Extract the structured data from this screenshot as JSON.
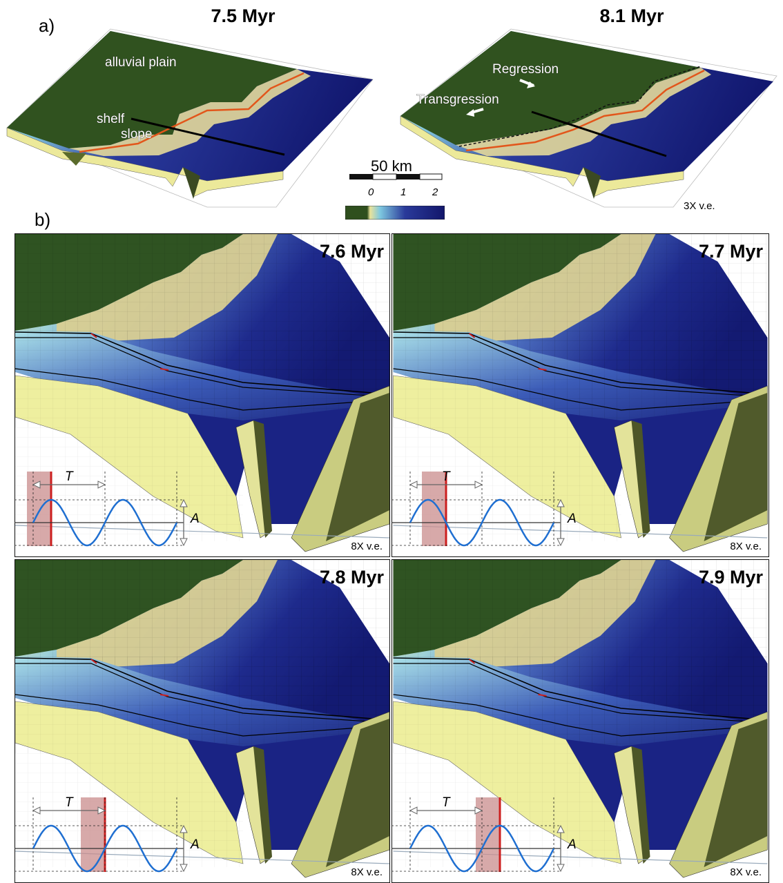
{
  "section_a_label": "a)",
  "section_b_label": "b)",
  "top_panels": [
    {
      "title": "7.5 Myr",
      "labels": [
        "alluvial plain",
        "shelf",
        "slope"
      ]
    },
    {
      "title": "8.1 Myr",
      "labels": [
        "Regression",
        "Transgression"
      ]
    }
  ],
  "scale_bar": {
    "label": "50 km"
  },
  "colorbar": {
    "ticks": [
      "0",
      "1",
      "2"
    ],
    "colors": [
      "#2f4f1e",
      "#eae39a",
      "#7ec8e0",
      "#2a3a9a",
      "#12166b"
    ]
  },
  "top_ve": "3X v.e.",
  "panels": [
    {
      "title": "7.6 Myr",
      "ve": "8X v.e.",
      "period_label": "T",
      "amplitude_label": "A",
      "phase_fraction": 0.25
    },
    {
      "title": "7.7 Myr",
      "ve": "8X v.e.",
      "period_label": "T",
      "amplitude_label": "A",
      "phase_fraction": 0.5
    },
    {
      "title": "7.8 Myr",
      "ve": "8X v.e.",
      "period_label": "T",
      "amplitude_label": "A",
      "phase_fraction": 1.0
    },
    {
      "title": "7.9 Myr",
      "ve": "8X v.e.",
      "period_label": "T",
      "amplitude_label": "A",
      "phase_fraction": 1.25
    }
  ],
  "palette": {
    "land": "#2f5222",
    "shelf": "#d8cf93",
    "deep": "#161c7a",
    "sediment": "#eef0a0",
    "curve": "#1f6fd1",
    "marker": "#cc1f1f",
    "window": "#c98c8c"
  }
}
